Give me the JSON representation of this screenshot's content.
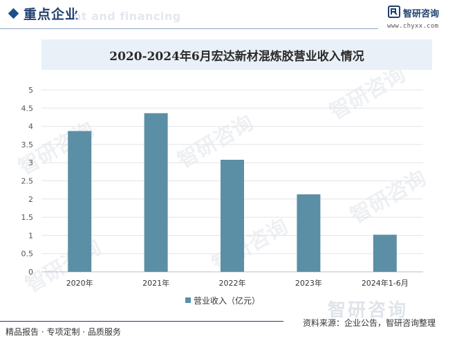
{
  "header": {
    "title": "重点企业",
    "watermark_text": "nt and financing",
    "brand_name": "智研咨询",
    "brand_url": "www.chyxx.com"
  },
  "colors": {
    "bar": "#5b8fa5",
    "accent": "#1f3f6e",
    "title_band": "#eaf0f7"
  },
  "chart_data": {
    "type": "bar",
    "title": "2020-2024年6月宏达新材混炼胶营业收入情况",
    "categories": [
      "2020年",
      "2021年",
      "2022年",
      "2023年",
      "2024年1-6月"
    ],
    "series": [
      {
        "name": "营业收入（亿元）",
        "values": [
          3.87,
          4.36,
          3.08,
          2.13,
          1.02
        ]
      }
    ],
    "ylim": [
      0,
      5
    ],
    "yticks": [
      "0",
      "0.5",
      "1",
      "1.5",
      "2",
      "2.5",
      "3",
      "3.5",
      "4",
      "4.5",
      "5"
    ],
    "grid": true,
    "legend_position": "bottom"
  },
  "footer": {
    "left_text": "精品报告 · 专项定制 · 品质服务",
    "source_text": "资料来源：企业公告，智研咨询整理",
    "logo_watermark": "智研咨询"
  }
}
